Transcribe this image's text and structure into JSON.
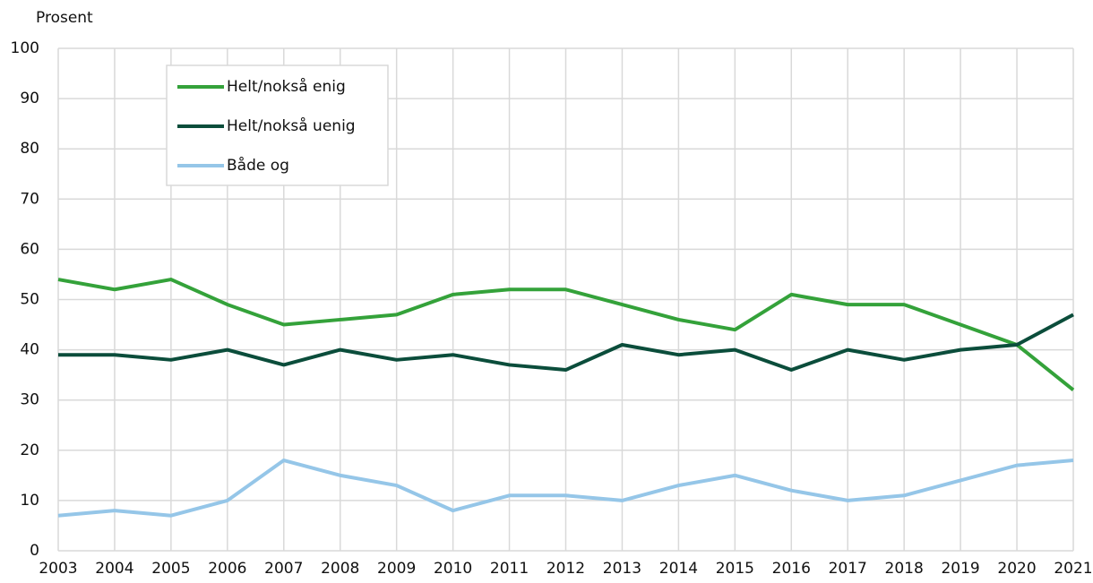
{
  "chart_data": {
    "type": "line",
    "y_label": "Prosent",
    "x": [
      2003,
      2004,
      2005,
      2006,
      2007,
      2008,
      2009,
      2010,
      2011,
      2012,
      2013,
      2014,
      2015,
      2016,
      2017,
      2018,
      2019,
      2020,
      2021
    ],
    "xlim": [
      2003,
      2021
    ],
    "xticks": [
      2003,
      2004,
      2005,
      2006,
      2007,
      2008,
      2009,
      2010,
      2011,
      2012,
      2013,
      2014,
      2015,
      2016,
      2017,
      2018,
      2019,
      2020,
      2021
    ],
    "ylim": [
      0,
      100
    ],
    "yticks": [
      0,
      10,
      20,
      30,
      40,
      50,
      60,
      70,
      80,
      90,
      100
    ],
    "grid": true,
    "legend": "upper left",
    "series": [
      {
        "name": "Helt/nokså enig",
        "color": "#34a23a",
        "values": [
          54,
          52,
          54,
          49,
          45,
          46,
          47,
          51,
          52,
          52,
          49,
          46,
          44,
          51,
          49,
          49,
          45,
          41,
          32
        ]
      },
      {
        "name": "Helt/nokså uenig",
        "color": "#0b4d3b",
        "values": [
          39,
          39,
          38,
          40,
          37,
          40,
          38,
          39,
          37,
          36,
          41,
          39,
          40,
          36,
          40,
          38,
          40,
          41,
          47
        ]
      },
      {
        "name": "Både og",
        "color": "#95c6e8",
        "values": [
          7,
          8,
          7,
          10,
          18,
          15,
          13,
          8,
          11,
          11,
          10,
          13,
          15,
          12,
          10,
          11,
          14,
          17,
          18
        ]
      }
    ]
  }
}
